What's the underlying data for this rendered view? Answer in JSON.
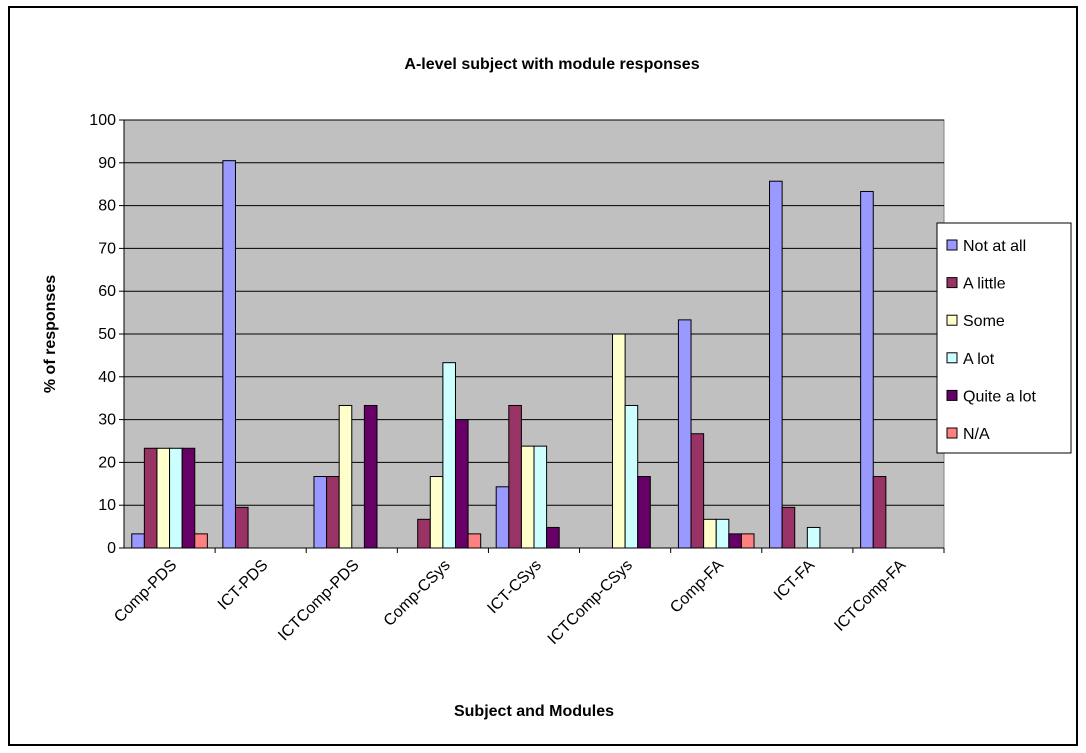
{
  "chart_data": {
    "type": "bar",
    "title": "A-level subject with module responses",
    "xlabel": "Subject and Modules",
    "ylabel": "% of responses",
    "ylim": [
      0,
      100
    ],
    "yticks": [
      0,
      10,
      20,
      30,
      40,
      50,
      60,
      70,
      80,
      90,
      100
    ],
    "grid": true,
    "legend_position": "right",
    "categories": [
      "Comp-PDS",
      "ICT-PDS",
      "ICTComp-PDS",
      "Comp-CSys",
      "ICT-CSys",
      "ICTComp-CSys",
      "Comp-FA",
      "ICT-FA",
      "ICTComp-FA"
    ],
    "series": [
      {
        "name": "Not at all",
        "color": "#9999ff",
        "values": [
          3.3,
          90.5,
          16.7,
          0,
          14.3,
          0,
          53.3,
          85.7,
          83.3
        ]
      },
      {
        "name": "A little",
        "color": "#993366",
        "values": [
          23.3,
          9.5,
          16.7,
          6.7,
          33.3,
          0,
          26.7,
          9.5,
          16.7
        ]
      },
      {
        "name": "Some",
        "color": "#ffffcc",
        "values": [
          23.3,
          0,
          33.3,
          16.7,
          23.8,
          50,
          6.7,
          0,
          0
        ]
      },
      {
        "name": "A lot",
        "color": "#ccffff",
        "values": [
          23.3,
          0,
          0,
          43.3,
          23.8,
          33.3,
          6.7,
          4.8,
          0
        ]
      },
      {
        "name": "Quite a lot",
        "color": "#660066",
        "values": [
          23.3,
          0,
          33.3,
          30,
          4.8,
          16.7,
          3.3,
          0,
          0
        ]
      },
      {
        "name": "N/A",
        "color": "#ff8080",
        "values": [
          3.3,
          0,
          0,
          3.3,
          0,
          0,
          3.3,
          0,
          0
        ]
      }
    ],
    "plot_background": "#c0c0c0"
  }
}
